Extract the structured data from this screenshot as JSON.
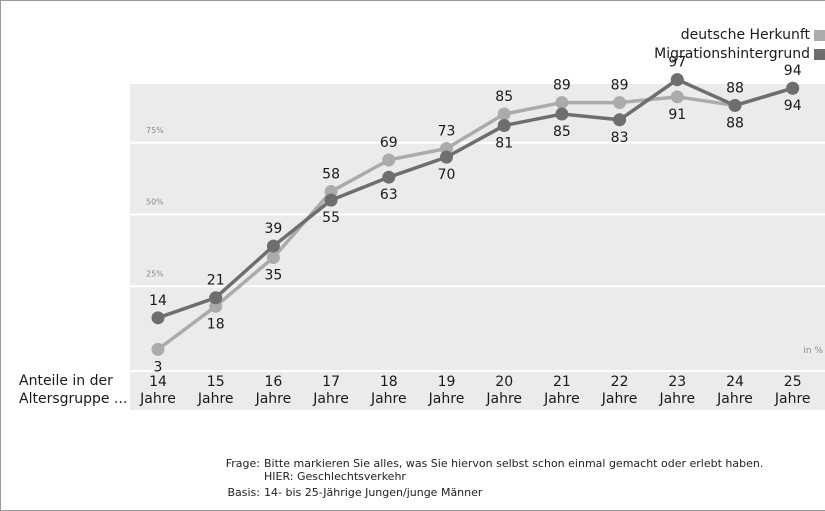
{
  "chart_data": {
    "type": "line",
    "categories": [
      "14",
      "15",
      "16",
      "17",
      "18",
      "19",
      "20",
      "21",
      "22",
      "23",
      "24",
      "25"
    ],
    "category_unit": "Jahre",
    "series": [
      {
        "name": "deutsche Herkunft",
        "color": "#ababab",
        "values": [
          3,
          18,
          35,
          58,
          69,
          73,
          85,
          89,
          89,
          91,
          88,
          94
        ],
        "labels": [
          "3",
          "18",
          "35",
          "58",
          "69",
          "73",
          "85",
          "89",
          "89",
          "91",
          "88",
          "94"
        ]
      },
      {
        "name": "Migrationshintergrund",
        "color": "#6e6e6e",
        "values": [
          14,
          21,
          39,
          55,
          63,
          70,
          81,
          85,
          83,
          97,
          88,
          94
        ],
        "labels": [
          "14",
          "21",
          "39",
          "55",
          "63",
          "70",
          "81",
          "85",
          "83",
          "97",
          "88",
          "94"
        ]
      }
    ],
    "y_ticks": [
      {
        "value": 25,
        "label": "25%"
      },
      {
        "value": 50,
        "label": "50%"
      },
      {
        "value": 75,
        "label": "75%"
      }
    ],
    "ylim": [
      0,
      100
    ],
    "unit_note": "in %",
    "grid": true,
    "legend_position": "top-right"
  },
  "row_label": {
    "line1": "Anteile in der",
    "line2": "Altersgruppe ..."
  },
  "footnote": {
    "question_label": "Frage:",
    "question_line1": "Bitte markieren Sie alles, was Sie hiervon selbst schon einmal gemacht oder erlebt haben.",
    "question_line2": "HIER: Geschlechtsverkehr",
    "basis_label": "Basis:",
    "basis_text": "14- bis 25-Jährige Jungen/junge Männer"
  }
}
